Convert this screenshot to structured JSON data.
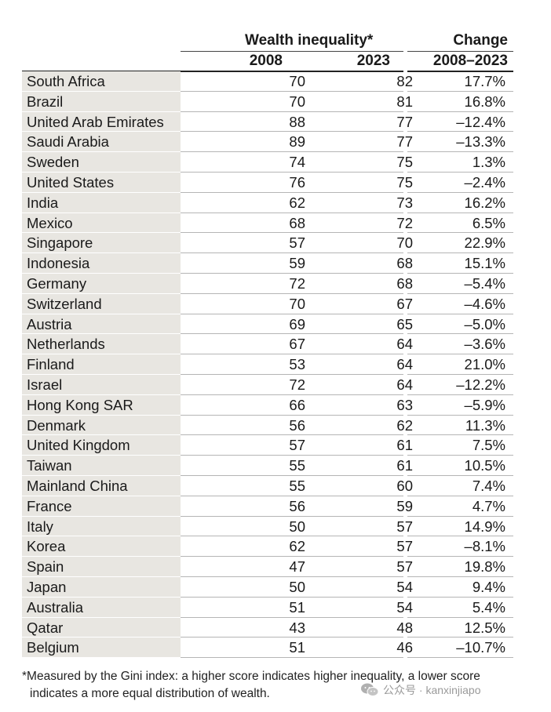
{
  "header": {
    "group_title": "Wealth inequality*",
    "col_2008": "2008",
    "col_2023": "2023",
    "change_title": "Change",
    "change_range": "2008–2023"
  },
  "rows": [
    {
      "country": "South Africa",
      "v2008": "70",
      "v2023": "82",
      "change": "17.7%"
    },
    {
      "country": "Brazil",
      "v2008": "70",
      "v2023": "81",
      "change": "16.8%"
    },
    {
      "country": "United Arab Emirates",
      "v2008": "88",
      "v2023": "77",
      "change": "–12.4%"
    },
    {
      "country": "Saudi Arabia",
      "v2008": "89",
      "v2023": "77",
      "change": "–13.3%"
    },
    {
      "country": "Sweden",
      "v2008": "74",
      "v2023": "75",
      "change": "1.3%"
    },
    {
      "country": "United States",
      "v2008": "76",
      "v2023": "75",
      "change": "–2.4%"
    },
    {
      "country": "India",
      "v2008": "62",
      "v2023": "73",
      "change": "16.2%"
    },
    {
      "country": "Mexico",
      "v2008": "68",
      "v2023": "72",
      "change": "6.5%"
    },
    {
      "country": "Singapore",
      "v2008": "57",
      "v2023": "70",
      "change": "22.9%"
    },
    {
      "country": "Indonesia",
      "v2008": "59",
      "v2023": "68",
      "change": "15.1%"
    },
    {
      "country": "Germany",
      "v2008": "72",
      "v2023": "68",
      "change": "–5.4%"
    },
    {
      "country": "Switzerland",
      "v2008": "70",
      "v2023": "67",
      "change": "–4.6%"
    },
    {
      "country": "Austria",
      "v2008": "69",
      "v2023": "65",
      "change": "–5.0%"
    },
    {
      "country": "Netherlands",
      "v2008": "67",
      "v2023": "64",
      "change": "–3.6%"
    },
    {
      "country": "Finland",
      "v2008": "53",
      "v2023": "64",
      "change": "21.0%"
    },
    {
      "country": "Israel",
      "v2008": "72",
      "v2023": "64",
      "change": "–12.2%"
    },
    {
      "country": "Hong Kong SAR",
      "v2008": "66",
      "v2023": "63",
      "change": "–5.9%"
    },
    {
      "country": "Denmark",
      "v2008": "56",
      "v2023": "62",
      "change": "11.3%"
    },
    {
      "country": "United Kingdom",
      "v2008": "57",
      "v2023": "61",
      "change": "7.5%"
    },
    {
      "country": "Taiwan",
      "v2008": "55",
      "v2023": "61",
      "change": "10.5%"
    },
    {
      "country": "Mainland China",
      "v2008": "55",
      "v2023": "60",
      "change": "7.4%"
    },
    {
      "country": "France",
      "v2008": "56",
      "v2023": "59",
      "change": "4.7%"
    },
    {
      "country": "Italy",
      "v2008": "50",
      "v2023": "57",
      "change": "14.9%"
    },
    {
      "country": "Korea",
      "v2008": "62",
      "v2023": "57",
      "change": "–8.1%"
    },
    {
      "country": "Spain",
      "v2008": "47",
      "v2023": "57",
      "change": "19.8%"
    },
    {
      "country": "Japan",
      "v2008": "50",
      "v2023": "54",
      "change": "9.4%"
    },
    {
      "country": "Australia",
      "v2008": "51",
      "v2023": "54",
      "change": "5.4%"
    },
    {
      "country": "Qatar",
      "v2008": "43",
      "v2023": "48",
      "change": "12.5%"
    },
    {
      "country": "Belgium",
      "v2008": "51",
      "v2023": "46",
      "change": "–10.7%"
    }
  ],
  "footnote": {
    "marker": "*",
    "line1": "Measured by the Gini index: a higher score indicates higher inequality, a lower score",
    "line2": "indicates a more equal distribution of wealth."
  },
  "watermark": {
    "icon": "wechat-icon",
    "text": "公众号 · kanxinjiapo"
  }
}
